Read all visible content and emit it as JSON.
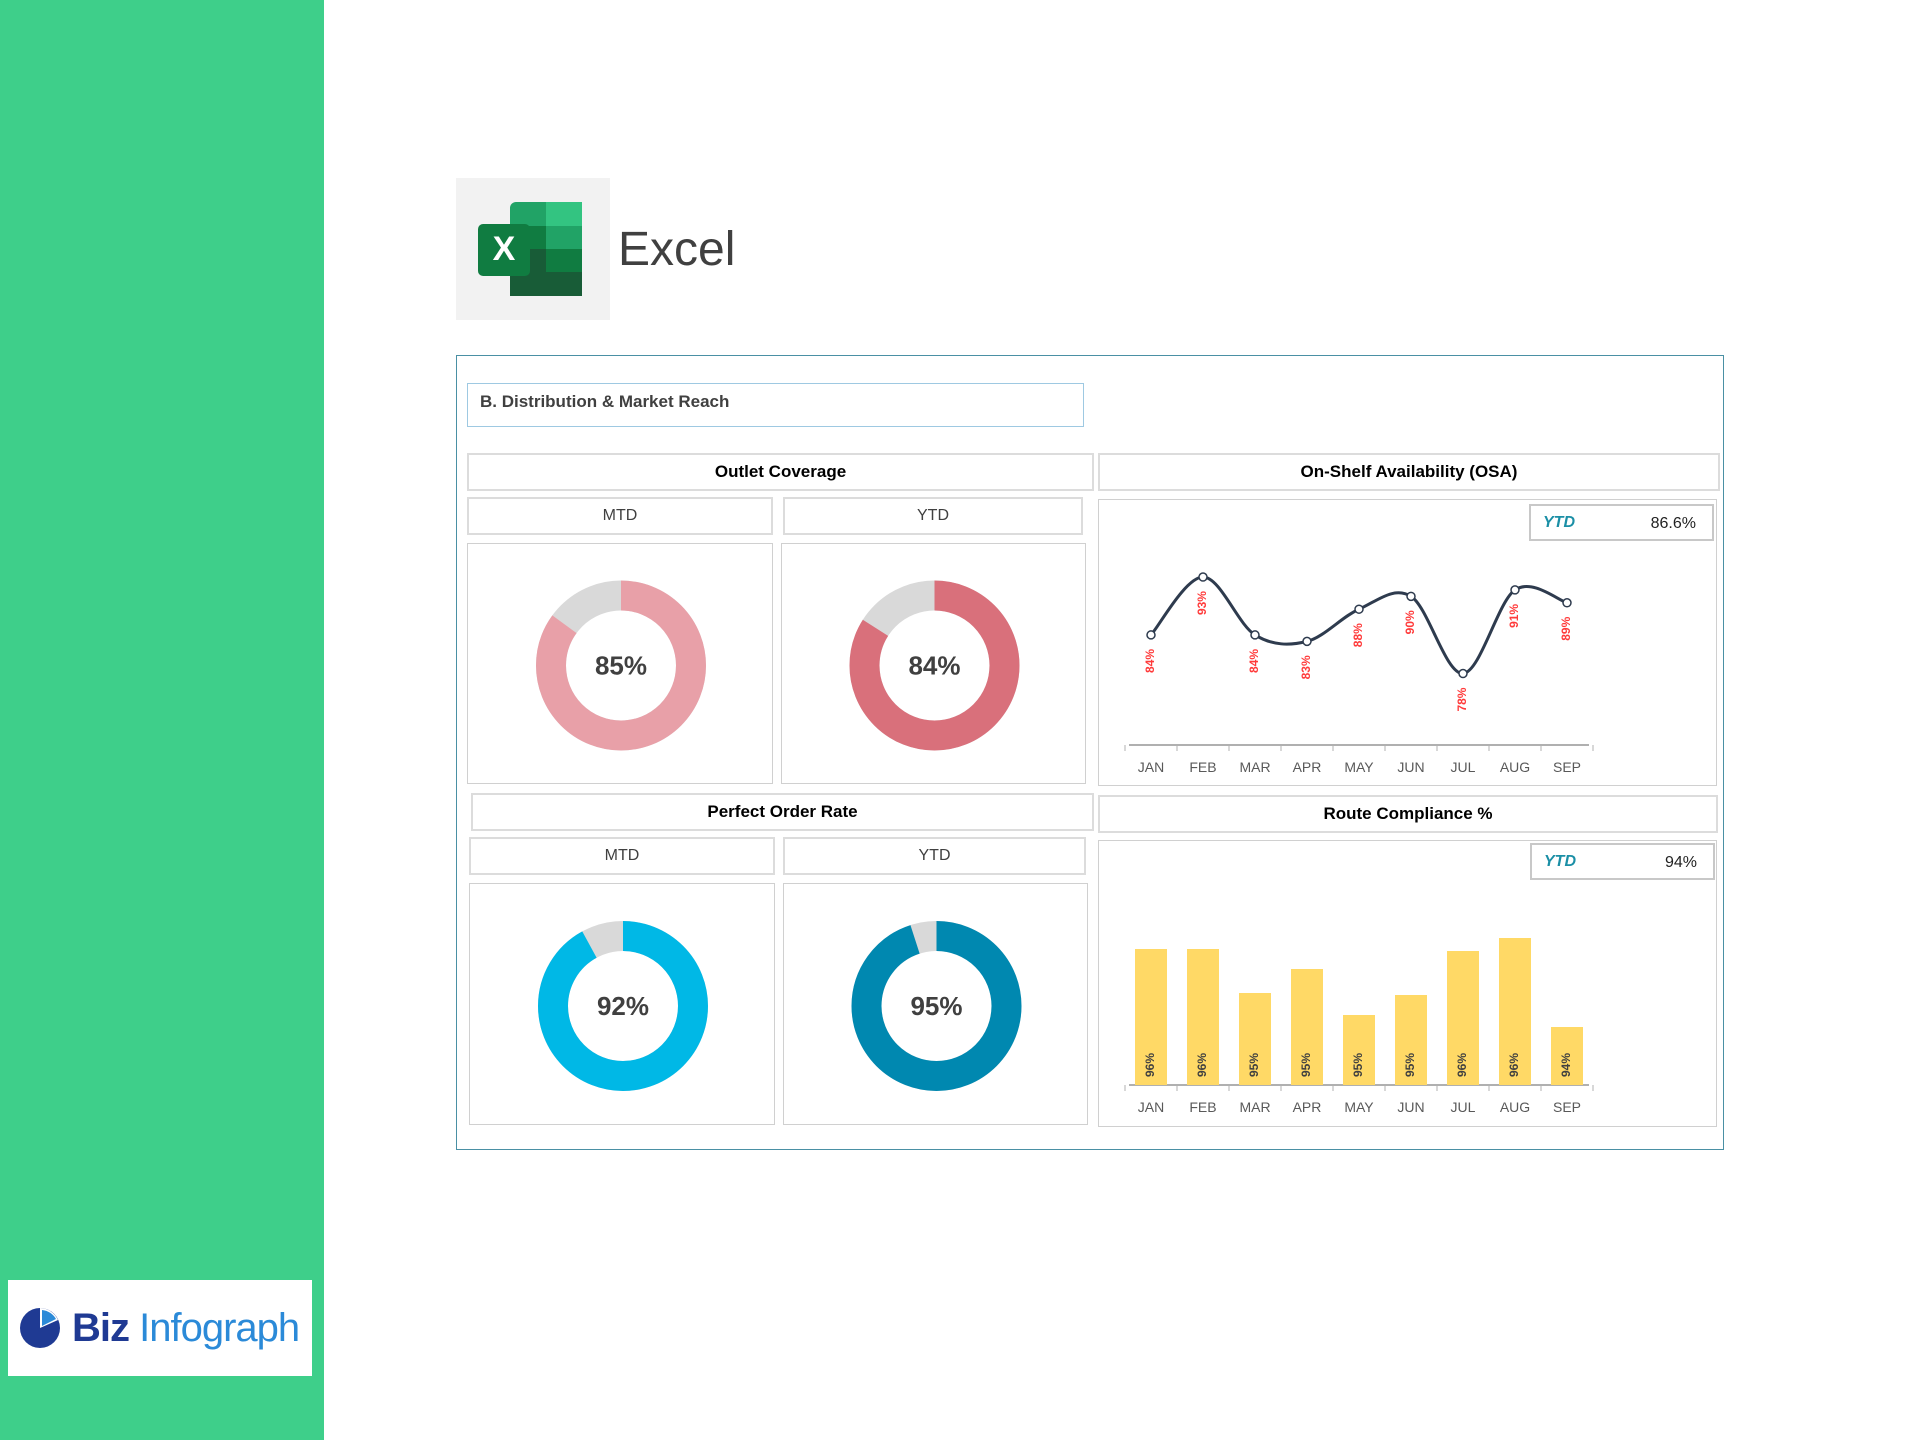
{
  "app": {
    "name": "Excel",
    "brand": "Biz Infograph",
    "brand_parts": [
      "Biz",
      "Infograph"
    ]
  },
  "colors": {
    "sidebar": "#3ecf8a",
    "outlet_mtd": "#e8a0a8",
    "outlet_ytd": "#d9707b",
    "order_mtd": "#00b8e6",
    "order_ytd": "#0088b0",
    "donut_rest": "#d9d9d9",
    "line": "#2e3b4e",
    "line_label": "#ff3b3b",
    "bar": "#ffd966"
  },
  "dashboard": {
    "section_title": "B. Distribution & Market Reach",
    "outlet": {
      "title": "Outlet Coverage",
      "mtd_label": "MTD",
      "ytd_label": "YTD",
      "mtd_value": "85%",
      "ytd_value": "84%"
    },
    "order": {
      "title": "Perfect Order Rate",
      "mtd_label": "MTD",
      "ytd_label": "YTD",
      "mtd_value": "92%",
      "ytd_value": "95%"
    },
    "osa": {
      "title": "On-Shelf Availability (OSA)",
      "ytd_label": "YTD",
      "ytd_value": "86.6%"
    },
    "route": {
      "title": "Route Compliance %",
      "ytd_label": "YTD",
      "ytd_value": "94%"
    }
  },
  "chart_data": [
    {
      "type": "pie",
      "title": "Outlet Coverage",
      "series": [
        {
          "name": "MTD",
          "values": [
            85,
            15
          ]
        }
      ]
    },
    {
      "type": "pie",
      "title": "Outlet Coverage",
      "series": [
        {
          "name": "YTD",
          "values": [
            84,
            16
          ]
        }
      ]
    },
    {
      "type": "pie",
      "title": "Perfect Order Rate",
      "series": [
        {
          "name": "MTD",
          "values": [
            92,
            8
          ]
        }
      ]
    },
    {
      "type": "pie",
      "title": "Perfect Order Rate",
      "series": [
        {
          "name": "YTD",
          "values": [
            95,
            5
          ]
        }
      ]
    },
    {
      "type": "line",
      "title": "On-Shelf Availability (OSA)",
      "categories": [
        "JAN",
        "FEB",
        "MAR",
        "APR",
        "MAY",
        "JUN",
        "JUL",
        "AUG",
        "SEP"
      ],
      "values": [
        84,
        93,
        84,
        83,
        88,
        90,
        78,
        91,
        89
      ],
      "labels": [
        "84%",
        "93%",
        "84%",
        "83%",
        "88%",
        "90%",
        "78%",
        "91%",
        "89%"
      ],
      "ylim": [
        70,
        100
      ],
      "grid": false
    },
    {
      "type": "bar",
      "title": "Route Compliance %",
      "categories": [
        "JAN",
        "FEB",
        "MAR",
        "APR",
        "MAY",
        "JUN",
        "JUL",
        "AUG",
        "SEP"
      ],
      "values": [
        96,
        96,
        95,
        95,
        95,
        95,
        96,
        96,
        94
      ],
      "labels": [
        "96%",
        "96%",
        "95%",
        "95%",
        "95%",
        "95%",
        "96%",
        "96%",
        "94%"
      ],
      "grid": false
    }
  ]
}
